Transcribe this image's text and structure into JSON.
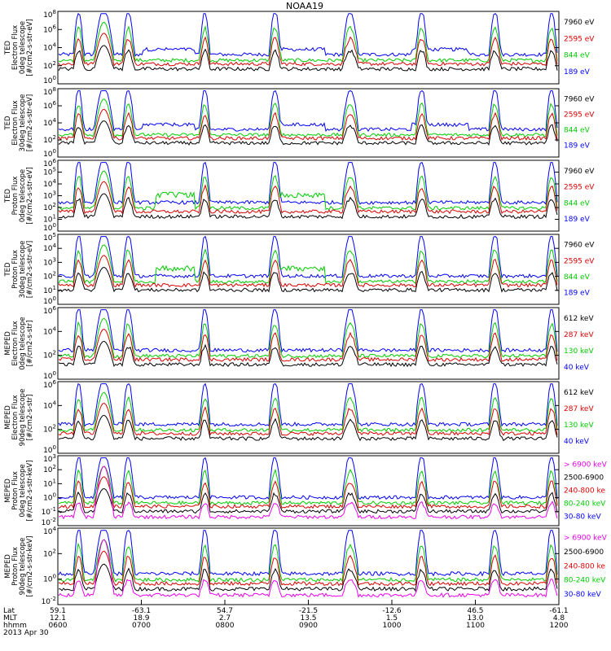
{
  "title": "NOAA19",
  "colors": {
    "black": "#000000",
    "red": "#dd0000",
    "green": "#00cc00",
    "blue": "#0000ff",
    "magenta": "#ee00ee"
  },
  "chart_data": {
    "type": "line",
    "title": "NOAA19",
    "x_axis": {
      "range": [
        "0600",
        "1200"
      ],
      "rows": [
        {
          "label": "Lat",
          "ticks": [
            "59.1",
            "-63.1",
            "54.7",
            "-21.5",
            "-12.6",
            "46.5",
            "-61.1"
          ]
        },
        {
          "label": "MLT",
          "ticks": [
            "12.1",
            "18.9",
            "2.7",
            "13.5",
            "1.5",
            "13.0",
            "4.8"
          ]
        },
        {
          "label": "hhmm",
          "ticks": [
            "0600",
            "0700",
            "0800",
            "0900",
            "1000",
            "1100",
            "1200"
          ]
        }
      ],
      "date": "2013 Apr 30"
    },
    "panels": [
      {
        "ylabel": [
          "TED",
          "Electron Flux",
          "0deg telescope",
          "[#/cm2-s-str-eV]"
        ],
        "yticks": [
          "10^0",
          "10^2",
          "10^4",
          "10^6",
          "10^8"
        ],
        "legend": [
          {
            "text": "7960 eV",
            "color": "black"
          },
          {
            "text": "2595 eV",
            "color": "red"
          },
          {
            "text": "844 eV",
            "color": "green"
          },
          {
            "text": "189 eV",
            "color": "blue"
          }
        ]
      },
      {
        "ylabel": [
          "TED",
          "Electron Flux",
          "30deg telescope",
          "[#/cm2-s-str-eV]"
        ],
        "yticks": [
          "10^0",
          "10^2",
          "10^4",
          "10^6",
          "10^8"
        ],
        "legend": [
          {
            "text": "7960 eV",
            "color": "black"
          },
          {
            "text": "2595 eV",
            "color": "red"
          },
          {
            "text": "844 eV",
            "color": "green"
          },
          {
            "text": "189 eV",
            "color": "blue"
          }
        ]
      },
      {
        "ylabel": [
          "TED",
          "Proton Flux",
          "0deg telescope",
          "[#/cm2-s-str-eV]"
        ],
        "yticks": [
          "10^0",
          "10^1",
          "10^2",
          "10^3",
          "10^4",
          "10^5",
          "10^6"
        ],
        "legend": [
          {
            "text": "7960 eV",
            "color": "black"
          },
          {
            "text": "2595 eV",
            "color": "red"
          },
          {
            "text": "844 eV",
            "color": "green"
          },
          {
            "text": "189 eV",
            "color": "blue"
          }
        ]
      },
      {
        "ylabel": [
          "TED",
          "Proton Flux",
          "30deg telescope",
          "[#/cm2-s-str-eV]"
        ],
        "yticks": [
          "10^0",
          "10^1",
          "10^2",
          "10^3",
          "10^4",
          "10^5"
        ],
        "legend": [
          {
            "text": "7960 eV",
            "color": "black"
          },
          {
            "text": "2595 eV",
            "color": "red"
          },
          {
            "text": "844 eV",
            "color": "green"
          },
          {
            "text": "189 eV",
            "color": "blue"
          }
        ]
      },
      {
        "ylabel": [
          "MEPED",
          "Electron Flux",
          "0deg telescope",
          "[#/cm2-s-str]"
        ],
        "yticks": [
          "10^0",
          "10^2",
          "10^4",
          "10^6"
        ],
        "legend": [
          {
            "text": "612 keV",
            "color": "black"
          },
          {
            "text": "287 keV",
            "color": "red"
          },
          {
            "text": "130 keV",
            "color": "green"
          },
          {
            "text": "40 keV",
            "color": "blue"
          }
        ]
      },
      {
        "ylabel": [
          "MEPED",
          "Electron Flux",
          "90deg telescope",
          "[#/cm2-s-str]"
        ],
        "yticks": [
          "10^0",
          "10^2",
          "10^4",
          "10^6"
        ],
        "legend": [
          {
            "text": "612 keV",
            "color": "black"
          },
          {
            "text": "287 keV",
            "color": "red"
          },
          {
            "text": "130 keV",
            "color": "green"
          },
          {
            "text": "40 keV",
            "color": "blue"
          }
        ]
      },
      {
        "ylabel": [
          "MEPED",
          "Proton Flux",
          "0deg telescope",
          "[#/cm2-s-str-keV]"
        ],
        "yticks": [
          "10^-2",
          "10^-1",
          "10^0",
          "10^1",
          "10^2",
          "10^3"
        ],
        "legend": [
          {
            "text": "> 6900 keV",
            "color": "magenta"
          },
          {
            "text": "2500-6900",
            "color": "black"
          },
          {
            "text": "240-800 ke",
            "color": "red"
          },
          {
            "text": "80-240 keV",
            "color": "green"
          },
          {
            "text": "30-80 keV",
            "color": "blue"
          }
        ]
      },
      {
        "ylabel": [
          "MEPED",
          "Proton Flux",
          "90deg telescope",
          "[#/cm2-s-str-keV]"
        ],
        "yticks": [
          "10^-2",
          "10^0",
          "10^2",
          "10^4"
        ],
        "legend": [
          {
            "text": "> 6900 keV",
            "color": "magenta"
          },
          {
            "text": "2500-6900",
            "color": "black"
          },
          {
            "text": "240-800 ke",
            "color": "red"
          },
          {
            "text": "80-240 keV",
            "color": "green"
          },
          {
            "text": "30-80 keV",
            "color": "blue"
          }
        ]
      }
    ]
  }
}
